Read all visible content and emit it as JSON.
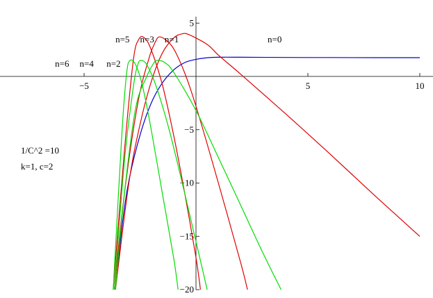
{
  "chart_data": {
    "type": "line",
    "title": "",
    "xlabel": "",
    "ylabel": "",
    "xlim": [
      -9,
      10.5
    ],
    "ylim": [
      -20,
      5.6
    ],
    "x_ticks": [
      -5,
      5,
      10
    ],
    "y_ticks": [
      5,
      -5,
      -10,
      -15,
      -20
    ],
    "grid": false,
    "parameters": [
      "1/C^2 =10",
      "k=1, c=2"
    ],
    "colors": {
      "red": "#e00000",
      "green": "#00dd00",
      "blue": "#0000cc"
    },
    "curve_labels": [
      {
        "text": "n=5",
        "x": -3.6,
        "y": 3.2
      },
      {
        "text": "n=3",
        "x": -2.5,
        "y": 3.2
      },
      {
        "text": "n=1",
        "x": -1.4,
        "y": 3.2
      },
      {
        "text": "n=0",
        "x": 3.2,
        "y": 3.2
      },
      {
        "text": "n=6",
        "x": -6.3,
        "y": 0.9
      },
      {
        "text": "n=4",
        "x": -5.2,
        "y": 0.9
      },
      {
        "text": "n=2",
        "x": -4.0,
        "y": 0.9
      }
    ],
    "series": [
      {
        "color": "blue",
        "values": [
          [
            -3.6,
            -20
          ],
          [
            -3.3,
            -14
          ],
          [
            -3,
            -9.8
          ],
          [
            -2.5,
            -5.5
          ],
          [
            -2,
            -2.5
          ],
          [
            -1.5,
            -0.6
          ],
          [
            -1,
            0.6
          ],
          [
            -0.5,
            1.3
          ],
          [
            0,
            1.6
          ],
          [
            0.5,
            1.75
          ],
          [
            1,
            1.8
          ],
          [
            2,
            1.8
          ],
          [
            4,
            1.78
          ],
          [
            6,
            1.77
          ],
          [
            8,
            1.76
          ],
          [
            10,
            1.76
          ]
        ]
      },
      {
        "color": "red",
        "values": [
          [
            -3.6,
            -20
          ],
          [
            -3,
            -10
          ],
          [
            -2.5,
            -4.5
          ],
          [
            -2,
            -0.5
          ],
          [
            -1.5,
            2.2
          ],
          [
            -1,
            3.6
          ],
          [
            -0.6,
            4
          ],
          [
            -0.3,
            3.9
          ],
          [
            0.5,
            3
          ],
          [
            1,
            2
          ],
          [
            2,
            0.2
          ],
          [
            4,
            -3.5
          ],
          [
            6,
            -7.3
          ],
          [
            8,
            -11.2
          ],
          [
            10,
            -15
          ]
        ]
      },
      {
        "color": "red",
        "values": [
          [
            -3.65,
            -20
          ],
          [
            -3.2,
            -11
          ],
          [
            -2.6,
            -2.5
          ],
          [
            -2.1,
            1.7
          ],
          [
            -1.8,
            3.3
          ],
          [
            -1.65,
            3.7
          ],
          [
            -1.4,
            3.5
          ],
          [
            -1,
            2.6
          ],
          [
            -0.5,
            0.3
          ],
          [
            0,
            -2.8
          ],
          [
            1,
            -10
          ],
          [
            2,
            -17.5
          ],
          [
            2.3,
            -20
          ]
        ]
      },
      {
        "color": "red",
        "values": [
          [
            -3.7,
            -20
          ],
          [
            -3.2,
            -7
          ],
          [
            -2.8,
            1.5
          ],
          [
            -2.55,
            3.5
          ],
          [
            -2.3,
            3.6
          ],
          [
            -2,
            2.5
          ],
          [
            -1.5,
            -0.8
          ],
          [
            -1,
            -5.5
          ],
          [
            -0.5,
            -11
          ],
          [
            0,
            -17
          ],
          [
            0.2,
            -20
          ]
        ]
      },
      {
        "color": "green",
        "values": [
          [
            -3.6,
            -20
          ],
          [
            -3.2,
            -11
          ],
          [
            -2.7,
            -3
          ],
          [
            -2.2,
            0
          ],
          [
            -1.9,
            1.2
          ],
          [
            -1.75,
            1.5
          ],
          [
            -1.4,
            1.3
          ],
          [
            -1,
            0.4
          ],
          [
            0,
            -3.2
          ],
          [
            1,
            -7.6
          ],
          [
            2,
            -12.1
          ],
          [
            3,
            -16.6
          ],
          [
            3.8,
            -20
          ]
        ]
      },
      {
        "color": "green",
        "values": [
          [
            -3.65,
            -20
          ],
          [
            -3.2,
            -8
          ],
          [
            -2.8,
            -1
          ],
          [
            -2.6,
            1.1
          ],
          [
            -2.45,
            1.5
          ],
          [
            -2.2,
            1.1
          ],
          [
            -1.8,
            -0.8
          ],
          [
            -1.2,
            -5
          ],
          [
            -0.5,
            -11
          ],
          [
            0,
            -15.5
          ],
          [
            0.5,
            -20
          ]
        ]
      },
      {
        "color": "green",
        "values": [
          [
            -3.7,
            -20
          ],
          [
            -3.3,
            -5
          ],
          [
            -3.1,
            0.3
          ],
          [
            -2.95,
            1.5
          ],
          [
            -2.7,
            1.1
          ],
          [
            -2.4,
            -0.8
          ],
          [
            -2,
            -5
          ],
          [
            -1.5,
            -11
          ],
          [
            -1,
            -17
          ],
          [
            -0.8,
            -20
          ]
        ]
      }
    ]
  }
}
